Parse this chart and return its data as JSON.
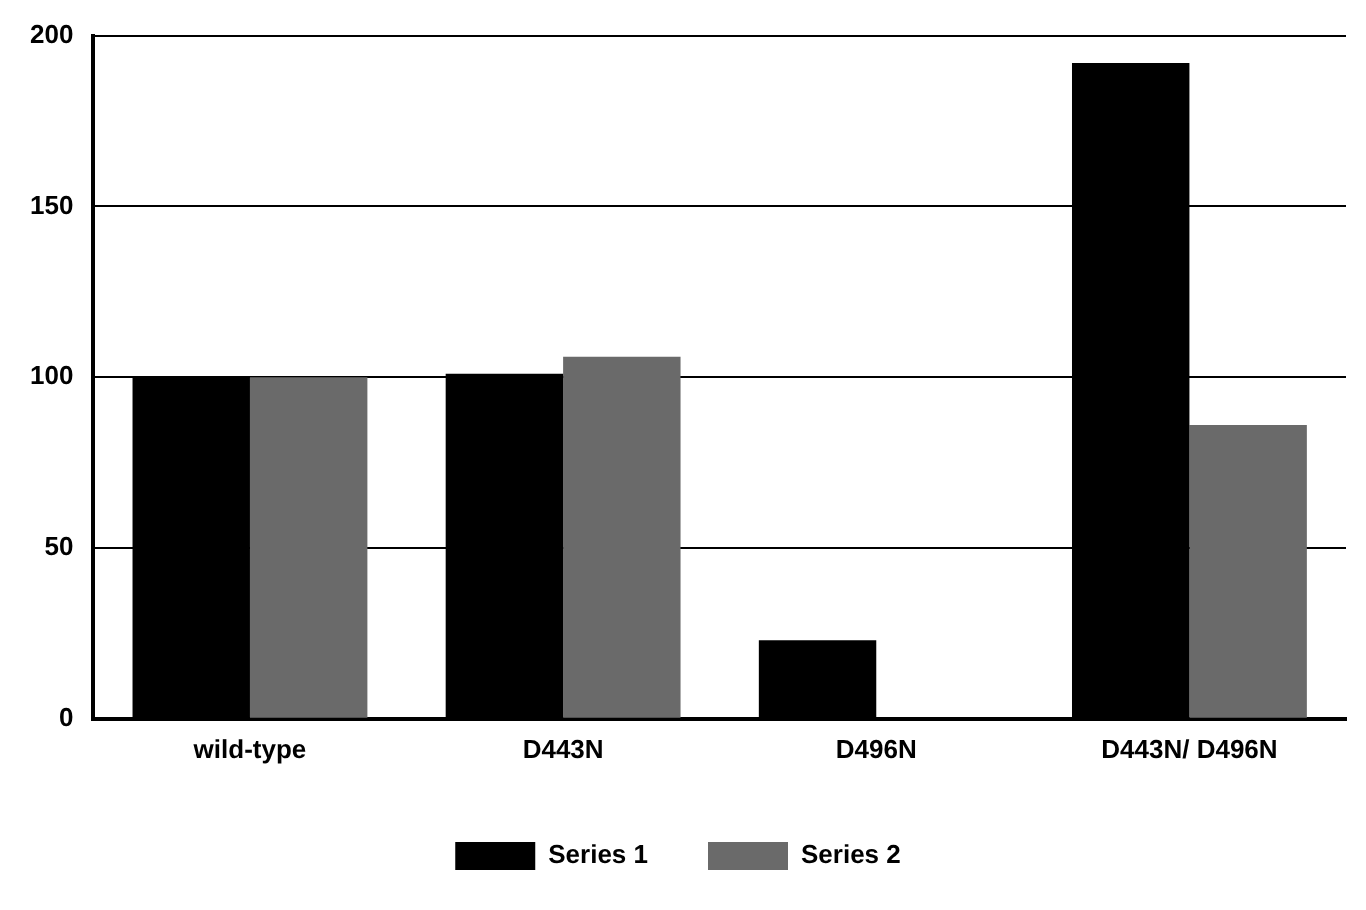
{
  "chart_data": {
    "type": "bar",
    "categories": [
      "wild-type",
      "D443N",
      "D496N",
      "D443N/ D496N"
    ],
    "series": [
      {
        "name": "Series 1",
        "color": "#000000",
        "values": [
          100,
          101,
          23,
          192
        ]
      },
      {
        "name": "Series 2",
        "color": "#6a6a6a",
        "values": [
          100,
          106,
          0,
          86
        ]
      }
    ],
    "ylim": [
      0,
      200
    ],
    "yticks": [
      0,
      50,
      100,
      150,
      200
    ],
    "grid": "y",
    "legend": "bottom"
  }
}
